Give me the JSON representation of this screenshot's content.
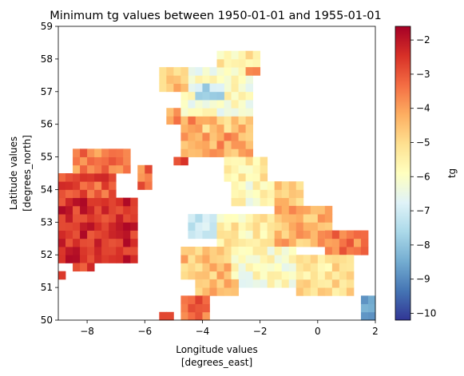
{
  "chart_data": {
    "type": "heatmap",
    "title": "Minimum tg values between 1950-01-01 and 1955-01-01",
    "xlabel": [
      "Longitude values",
      "[degrees_east]"
    ],
    "ylabel": [
      "Latitude values",
      "[degrees_north]"
    ],
    "colorbar_label": "tg",
    "colormap": "RdYlBu_r",
    "xlim": [
      -9,
      2
    ],
    "ylim": [
      50,
      59
    ],
    "x_ticks": [
      -8,
      -6,
      -4,
      -2,
      0,
      2
    ],
    "y_ticks": [
      50,
      51,
      52,
      53,
      54,
      55,
      56,
      57,
      58,
      59
    ],
    "colorbar_range": [
      -10.2,
      -1.6
    ],
    "colorbar_ticks": [
      -10,
      -9,
      -8,
      -7,
      -6,
      -5,
      -4,
      -3,
      -2
    ],
    "grid": false,
    "cell_size_deg": [
      0.25,
      0.25
    ],
    "regions": [
      {
        "x": [
          -9,
          -6.25
        ],
        "y": [
          51.75,
          53.75
        ],
        "value": -2.4
      },
      {
        "x": [
          -9,
          -7
        ],
        "y": [
          53.75,
          54.5
        ],
        "value": -3.0
      },
      {
        "x": [
          -8.5,
          -6.5
        ],
        "y": [
          54.5,
          55.25
        ],
        "value": -3.6
      },
      {
        "x": [
          -8.5,
          -7.75
        ],
        "y": [
          51.5,
          51.75
        ],
        "value": -2.6
      },
      {
        "x": [
          -9,
          -8.75
        ],
        "y": [
          51.25,
          51.5
        ],
        "value": -2.2
      },
      {
        "x": [
          -6.25,
          -5.75
        ],
        "y": [
          54,
          54.75
        ],
        "value": -3.4
      },
      {
        "x": [
          -5,
          -4.5
        ],
        "y": [
          54.75,
          55
        ],
        "value": -2.4
      },
      {
        "x": [
          -4.75,
          -2.25
        ],
        "y": [
          55,
          55.75
        ],
        "value": -4.1
      },
      {
        "x": [
          -4.75,
          -2.25
        ],
        "y": [
          55.75,
          56.25
        ],
        "value": -4.6
      },
      {
        "x": [
          -5.25,
          -4.25
        ],
        "y": [
          56,
          56.5
        ],
        "value": -3.9
      },
      {
        "x": [
          -4.75,
          -2.25
        ],
        "y": [
          56.25,
          57.75
        ],
        "value": -6.0
      },
      {
        "x": [
          -4.25,
          -3.25
        ],
        "y": [
          56.75,
          57.25
        ],
        "value": -7.4
      },
      {
        "x": [
          -5.5,
          -4.5
        ],
        "y": [
          57,
          57.75
        ],
        "value": -4.7
      },
      {
        "x": [
          -3.5,
          -2.0
        ],
        "y": [
          57.75,
          58.25
        ],
        "value": -5.5
      },
      {
        "x": [
          -2.5,
          -2.0
        ],
        "y": [
          57.5,
          57.75
        ],
        "value": -3.8
      },
      {
        "x": [
          -3.25,
          -1.75
        ],
        "y": [
          54.25,
          55
        ],
        "value": -5.4
      },
      {
        "x": [
          -3,
          -1.25
        ],
        "y": [
          53.5,
          54.25
        ],
        "value": -5.9
      },
      {
        "x": [
          -1.5,
          -0.5
        ],
        "y": [
          53.5,
          54.25
        ],
        "value": -4.7
      },
      {
        "x": [
          -4.5,
          -3.5
        ],
        "y": [
          52.5,
          53.25
        ],
        "value": -7.4
      },
      {
        "x": [
          -3.5,
          -1.5
        ],
        "y": [
          52.25,
          53.25
        ],
        "value": -5.5
      },
      {
        "x": [
          -1.5,
          0.5
        ],
        "y": [
          52.25,
          53.5
        ],
        "value": -4.3
      },
      {
        "x": [
          0.25,
          1.75
        ],
        "y": [
          52,
          52.75
        ],
        "value": -3.6
      },
      {
        "x": [
          -4.75,
          -3.0
        ],
        "y": [
          51.25,
          52.25
        ],
        "value": -4.6
      },
      {
        "x": [
          -3.0,
          -0.75
        ],
        "y": [
          51.0,
          52.25
        ],
        "value": -6.0
      },
      {
        "x": [
          -0.75,
          1.25
        ],
        "y": [
          50.75,
          52.0
        ],
        "value": -5.2
      },
      {
        "x": [
          -4.25,
          -2.75
        ],
        "y": [
          50.75,
          51.25
        ],
        "value": -4.3
      },
      {
        "x": [
          -4.75,
          -3.75
        ],
        "y": [
          50.0,
          50.75
        ],
        "value": -3.2
      },
      {
        "x": [
          -5.5,
          -5.0
        ],
        "y": [
          50.0,
          50.25
        ],
        "value": -2.6
      },
      {
        "x": [
          1.5,
          2.0
        ],
        "y": [
          50.0,
          50.75
        ],
        "value": -8.7
      }
    ]
  }
}
